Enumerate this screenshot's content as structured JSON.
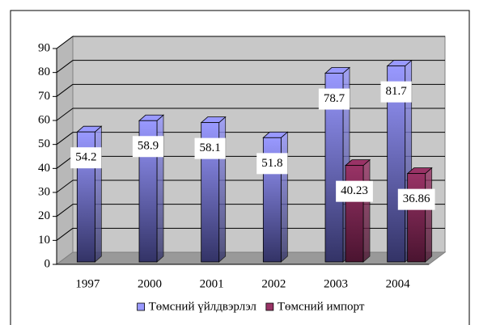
{
  "chart_data": {
    "type": "bar",
    "categories": [
      "1997",
      "2000",
      "2001",
      "2002",
      "2003",
      "2004"
    ],
    "series": [
      {
        "name": "Төмсний үйлдвэрлэл",
        "color": "#9999ff",
        "values": [
          54.2,
          58.9,
          58.1,
          51.8,
          78.7,
          81.7
        ]
      },
      {
        "name": "Төмсний импорт",
        "color": "#993366",
        "values": [
          null,
          null,
          null,
          null,
          40.23,
          36.86
        ]
      }
    ],
    "ylim": [
      0,
      90
    ],
    "yticks": [
      0,
      10,
      20,
      30,
      40,
      50,
      60,
      70,
      80,
      90
    ],
    "grid": true,
    "legend": "bottom"
  }
}
